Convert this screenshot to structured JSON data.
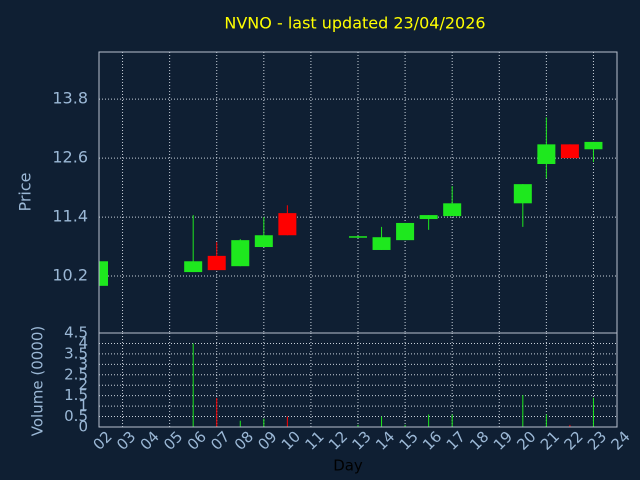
{
  "chart_data": {
    "type": "candlestick",
    "title": "NVNO - last updated 23/04/2026",
    "ylabel": "Price",
    "y2label": "Volume (0000)",
    "xlabel": "Day",
    "categories": [
      "02",
      "03",
      "04",
      "05",
      "06",
      "07",
      "08",
      "09",
      "10",
      "11",
      "12",
      "13",
      "14",
      "15",
      "16",
      "17",
      "18",
      "19",
      "20",
      "21",
      "22",
      "23",
      "24"
    ],
    "open": [
      10.0,
      null,
      null,
      null,
      10.28,
      10.61,
      10.4,
      10.79,
      11.48,
      null,
      null,
      10.99,
      10.73,
      10.93,
      11.36,
      11.42,
      null,
      null,
      11.68,
      12.48,
      12.88,
      12.78,
      null
    ],
    "high": [
      10.5,
      null,
      null,
      null,
      11.44,
      10.89,
      10.95,
      11.4,
      11.64,
      null,
      null,
      11.02,
      11.2,
      11.28,
      11.44,
      12.03,
      null,
      null,
      12.07,
      13.43,
      12.88,
      12.93,
      null
    ],
    "low": [
      10.0,
      null,
      null,
      null,
      10.28,
      10.32,
      10.4,
      10.79,
      11.03,
      null,
      null,
      10.98,
      10.73,
      10.93,
      11.14,
      11.42,
      null,
      null,
      11.2,
      12.19,
      12.6,
      12.52,
      null
    ],
    "close": [
      10.5,
      null,
      null,
      null,
      10.5,
      10.32,
      10.93,
      11.03,
      11.03,
      null,
      null,
      11.01,
      10.99,
      11.28,
      11.44,
      11.68,
      null,
      null,
      12.07,
      12.88,
      12.6,
      12.93,
      null
    ],
    "volume": [
      0.05,
      null,
      null,
      null,
      4.0,
      1.39,
      0.3,
      0.4,
      0.5,
      null,
      null,
      0.1,
      0.5,
      0.1,
      0.6,
      0.6,
      null,
      null,
      1.53,
      0.6,
      0.1,
      1.4,
      null
    ],
    "up_color": "#1ee81e",
    "down_color": "#ff0000",
    "ylim": [
      9.04,
      14.76
    ],
    "yticks": [
      10.2,
      11.4,
      12.6,
      13.8
    ],
    "y2lim": [
      0,
      4.5
    ],
    "y2ticks": [
      0,
      0.5,
      1,
      1.5,
      2,
      2.5,
      3,
      3.5,
      4,
      4.5
    ],
    "grid": true
  }
}
